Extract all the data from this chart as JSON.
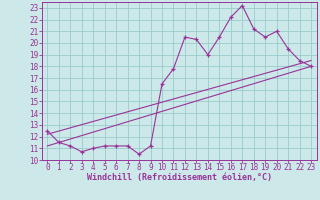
{
  "xlabel": "Windchill (Refroidissement éolien,°C)",
  "background_color": "#cce8e8",
  "grid_color": "#99cccc",
  "line_color": "#993399",
  "spine_color": "#993399",
  "xlim": [
    -0.5,
    23.5
  ],
  "ylim": [
    10,
    23.5
  ],
  "xticks": [
    0,
    1,
    2,
    3,
    4,
    5,
    6,
    7,
    8,
    9,
    10,
    11,
    12,
    13,
    14,
    15,
    16,
    17,
    18,
    19,
    20,
    21,
    22,
    23
  ],
  "yticks": [
    10,
    11,
    12,
    13,
    14,
    15,
    16,
    17,
    18,
    19,
    20,
    21,
    22,
    23
  ],
  "line1_x": [
    0,
    1,
    2,
    3,
    4,
    5,
    6,
    7,
    8,
    9,
    10,
    11,
    12,
    13,
    14,
    15,
    16,
    17,
    18,
    19,
    20,
    21,
    22,
    23
  ],
  "line1_y": [
    12.5,
    11.5,
    11.2,
    10.7,
    11.0,
    11.2,
    11.2,
    11.2,
    10.5,
    11.2,
    16.5,
    17.8,
    20.5,
    20.3,
    19.0,
    20.5,
    22.2,
    23.2,
    21.2,
    20.5,
    21.0,
    19.5,
    18.5,
    18.0
  ],
  "line2_x": [
    0,
    23
  ],
  "line2_y": [
    11.2,
    18.0
  ],
  "line3_x": [
    0,
    23
  ],
  "line3_y": [
    12.2,
    18.5
  ],
  "tick_fontsize": 5.5,
  "xlabel_fontsize": 6.0
}
